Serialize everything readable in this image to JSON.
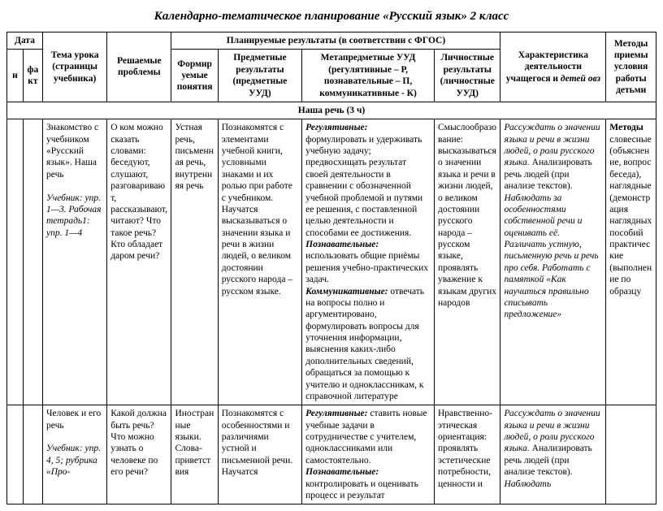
{
  "title": "Календарно-тематическое планирование «Русский язык»  2 класс",
  "headers": {
    "date": "Дата",
    "date_n": "н",
    "date_fakt": "факт",
    "topic": "Тема урока (страницы учебника)",
    "problems": "Решаемые проблемы",
    "planned": "Планируемые результаты (в соответствии с ФГОС)",
    "formed": "Формируемые понятия",
    "subject": "Предметные результаты (предметные УУД)",
    "meta": "Метапредметные УУД (регулятивные – Р, познавательные – П, коммуникативные - К)",
    "personal": "Личностные результаты (личностные УУД)",
    "activity": "Характеристика деятельности учащегося  и ",
    "activity_ovz": "детей овз",
    "methods": "Методы приемы условия работы детьми"
  },
  "section": "Наша речь (3 ч)",
  "r1": {
    "topic_a": "Знакомство с учебником «Русский язык». Наша речь",
    "topic_b": "Учебник: упр. 1—3. Рабочая тетрадь1: упр. 1—4",
    "problems": "О ком можно сказать словами: беседуют, слушают, разговаривают, рассказывают, читают? Что такое речь? Кто обладает даром речи?",
    "formed": "Устная речь, письменная речь, внутренняя речь",
    "subject": "Познакомятся с элементами учебной книги, условными знаками и их ролью при работе с учебником. Научатся высказываться о значении языка и речи в жизни людей, о великом достоянии русского народа – русском языке.",
    "meta_r_lbl": "Регулятивные:",
    "meta_r": " формулировать и удерживать учебную задачу; предвосхищать результат своей деятельности в сравнении с обозначенной учебной проблемой и путями ее решения, с поставленной целью деятельности и способами ее достижения.",
    "meta_p_lbl": "Познавательные:",
    "meta_p": " использовать общие приёмы решения учебно-практических задач.",
    "meta_k_lbl": "Коммуникативные:",
    "meta_k": " отвечать на вопросы полно и аргументировано, формулировать вопросы для уточнения информации, выяснения каких-либо дополнительных сведений, обращаться за помощью к учителю и одноклассникам, к справочной литературе",
    "personal": "Смыслообразование: высказываться о значении языка и речи в жизни людей, о великом достоянии русского народа – русском языке, проявлять уважение к языкам других народов",
    "activity_a": "Рассуждать о значении языка и речи в жизни людей, о роли русского языка.",
    "activity_b": " Анализировать речь людей (при анализе текстов). ",
    "activity_c": "Наблюдать за особенностями собственной речи и оценивать её. Различать устную, письменную речь и речь про себя. Работать с памяткой «Как научиться правильно списывать предложение»",
    "methods_a": "Методы",
    "methods_b": " словесные (объяснение, вопрос беседа), наглядные (демонстрация наглядных пособий практические (выполнение по образцу"
  },
  "r2": {
    "topic_a": "Человек и его речь",
    "topic_b": "Учебник: упр. 4, 5; рубрика «Про-",
    "problems": "Какой должна быть речь? Что можно узнать о человеке по его речи?",
    "formed": "Иностранные языки. Слова-приветствия",
    "subject": "Познакомятся с особенностями и различиями устной и письменной речи. Научатся",
    "meta_r_lbl": "Регулятивные:",
    "meta_r": " ставить новые учебные задачи в сотрудничестве с учителем, одноклассниками или самостоятельно.",
    "meta_p_lbl": "Познавательные:",
    "meta_p": " контролировать и оценивать процесс и результат",
    "personal": "Нравственно-этическая ориентация: проявлять эстетические потребности, ценности и",
    "activity_a": "Рассуждать о значении языка и речи в жизни людей, о роли русского языка.",
    "activity_b": " Анализировать речь людей (при анализе текстов). ",
    "activity_c": "Наблюдать"
  }
}
